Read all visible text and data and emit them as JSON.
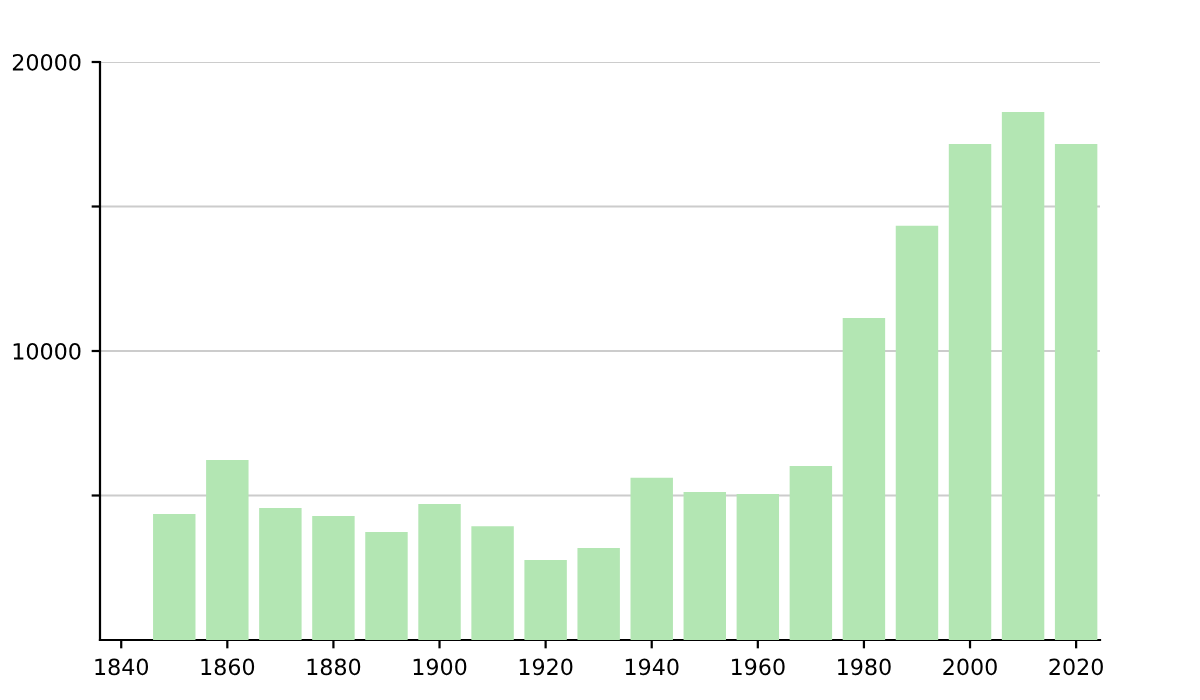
{
  "chart_data": {
    "type": "bar",
    "x": [
      1850,
      1860,
      1870,
      1880,
      1890,
      1900,
      1910,
      1920,
      1930,
      1940,
      1950,
      1960,
      1970,
      1980,
      1990,
      2000,
      2010,
      2020
    ],
    "values": [
      4360,
      6230,
      4570,
      4290,
      3740,
      4710,
      3940,
      2770,
      3180,
      5610,
      5120,
      5050,
      6020,
      11140,
      14330,
      17160,
      18270,
      17160
    ],
    "color": "#b3e6b3",
    "xlim": [
      1836,
      2024.5
    ],
    "xticks": [
      1840,
      1860,
      1880,
      1900,
      1920,
      1940,
      1960,
      1980,
      2000,
      2020
    ],
    "ylim": [
      0,
      20000
    ],
    "yticks": [
      {
        "value": 5000,
        "label": null
      },
      10000,
      {
        "value": 15000,
        "label": null
      },
      20000
    ],
    "grid": "y"
  }
}
